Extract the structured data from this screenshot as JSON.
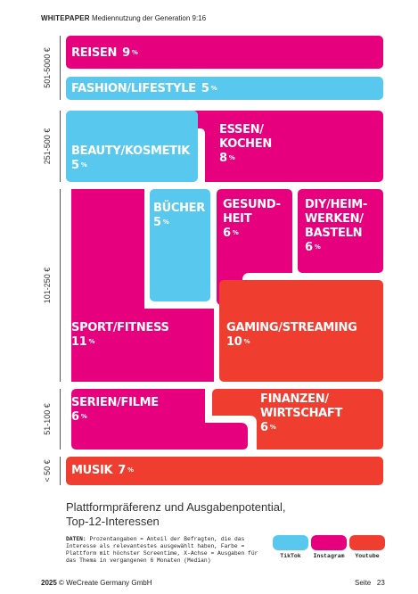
{
  "header": {
    "brand": "WHITEPAPER",
    "title": "Mediennutzung der Generation 9:16"
  },
  "chart_data": {
    "type": "treemap",
    "y_axis_categories": [
      "501-5000 €",
      "251-500 €",
      "101-250 €",
      "51-100 €",
      "< 50 €"
    ],
    "items": [
      {
        "id": "reisen",
        "name": "REISEN",
        "value": 9,
        "unit": "%",
        "platform": "Instagram",
        "spending": "501-5000 €"
      },
      {
        "id": "fashion",
        "name": "FASHION/LIFESTYLE",
        "value": 5,
        "unit": "%",
        "platform": "TikTok",
        "spending": "501-5000 €"
      },
      {
        "id": "beauty",
        "name": "BEAUTY/KOSMETIK",
        "value": 5,
        "unit": "%",
        "platform": "TikTok",
        "spending": "251-500 €"
      },
      {
        "id": "essen",
        "name_lines": [
          "ESSEN/",
          "KOCHEN"
        ],
        "value": 8,
        "unit": "%",
        "platform": "Instagram",
        "spending": "251-500 €"
      },
      {
        "id": "buecher",
        "name": "BÜCHER",
        "value": 5,
        "unit": "%",
        "platform": "TikTok",
        "spending": "101-250 €"
      },
      {
        "id": "gesundheit",
        "name_lines": [
          "GESUND-",
          "HEIT"
        ],
        "value": 6,
        "unit": "%",
        "platform": "Instagram",
        "spending": "101-250 €"
      },
      {
        "id": "diy",
        "name_lines": [
          "DIY/HEIM-",
          "WERKEN/",
          "BASTELN"
        ],
        "value": 6,
        "unit": "%",
        "platform": "Instagram",
        "spending": "101-250 €"
      },
      {
        "id": "sport",
        "name": "SPORT/FITNESS",
        "value": 11,
        "unit": "%",
        "platform": "Instagram",
        "spending": "101-250 €"
      },
      {
        "id": "gaming",
        "name": "GAMING/STREAMING",
        "value": 10,
        "unit": "%",
        "platform": "Youtube",
        "spending": "101-250 €"
      },
      {
        "id": "serien",
        "name": "SERIEN/FILME",
        "value": 6,
        "unit": "%",
        "platform": "Instagram",
        "spending": "51-100 €"
      },
      {
        "id": "finanzen",
        "name_lines": [
          "FINANZEN/",
          "WIRTSCHAFT"
        ],
        "value": 6,
        "unit": "%",
        "platform": "Youtube",
        "spending": "51-100 €"
      },
      {
        "id": "musik",
        "name": "MUSIK",
        "value": 7,
        "unit": "%",
        "platform": "Youtube",
        "spending": "< 50 €"
      }
    ],
    "legend": [
      {
        "label": "TikTok",
        "color": "#59c8ef"
      },
      {
        "label": "Instagram",
        "color": "#e6007e"
      },
      {
        "label": "Youtube",
        "color": "#ef3e2f"
      }
    ]
  },
  "caption": {
    "line1": "Plattformpräferenz und Ausgabenpotential,",
    "line2": "Top-12-Interessen"
  },
  "notes": {
    "label": "DATEN:",
    "text": "Prozentangaben = Anteil der Befragten, die das Interesse als relevantestes ausgewählt haben, Farbe = Plattform mit höchster Screentime, X-Achse = Ausgaben für das Thema in vergangenen 6 Monaten (Median)"
  },
  "footer": {
    "year": "2025",
    "company": "© WeCreate Germany GmbH",
    "page_label": "Seite",
    "page_number": "23"
  }
}
